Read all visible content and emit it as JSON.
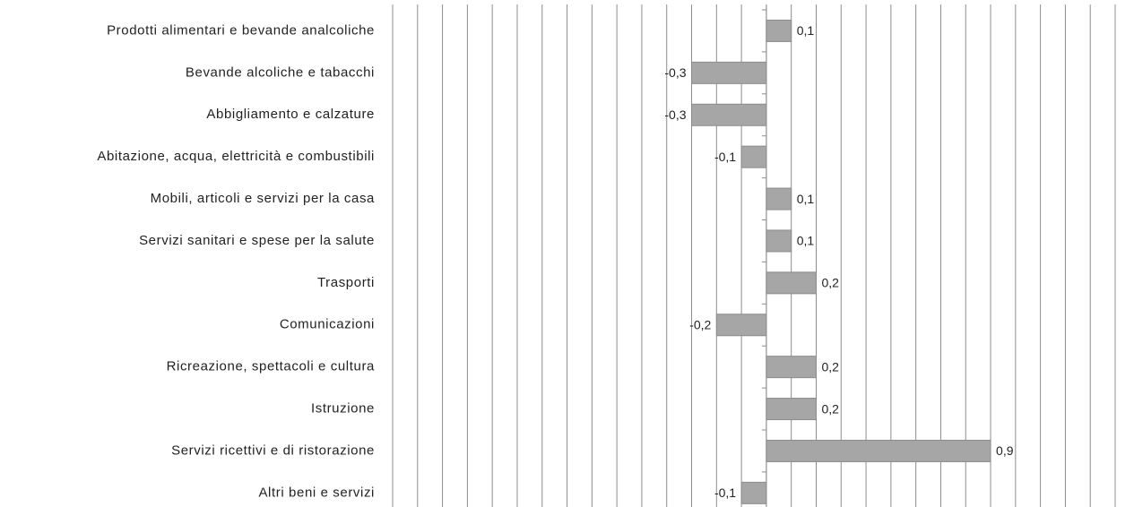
{
  "chart_data": {
    "type": "hbar",
    "categories": [
      "Prodotti alimentari e bevande analcoliche",
      "Bevande alcoliche e tabacchi",
      "Abbigliamento e calzature",
      "Abitazione, acqua, elettricità e combustibili",
      "Mobili, articoli e servizi per la casa",
      "Servizi sanitari e spese per la salute",
      "Trasporti",
      "Comunicazioni",
      "Ricreazione, spettacoli e cultura",
      "Istruzione",
      "Servizi ricettivi e di ristorazione",
      "Altri beni e servizi"
    ],
    "values": [
      0.1,
      -0.3,
      -0.3,
      -0.1,
      0.1,
      0.1,
      0.2,
      -0.2,
      0.2,
      0.2,
      0.9,
      -0.1
    ],
    "value_labels": [
      "0,1",
      "-0,3",
      "-0,3",
      "-0,1",
      "0,1",
      "0,1",
      "0,2",
      "-0,2",
      "0,2",
      "0,2",
      "0,9",
      "-0,1"
    ],
    "color": "#a6a6a6",
    "xlim": [
      -1.5,
      1.4
    ],
    "xticks": [
      -1.5,
      -1.4,
      -1.3,
      -1.2,
      -1.1,
      -1.0,
      -0.9,
      -0.8,
      -0.7,
      -0.6,
      -0.5,
      -0.4,
      -0.3,
      -0.2,
      -0.1,
      0,
      0.1,
      0.2,
      0.3,
      0.4,
      0.5,
      0.6,
      0.7,
      0.8,
      0.9,
      1.0,
      1.1,
      1.2,
      1.3,
      1.4
    ],
    "grid": true
  }
}
